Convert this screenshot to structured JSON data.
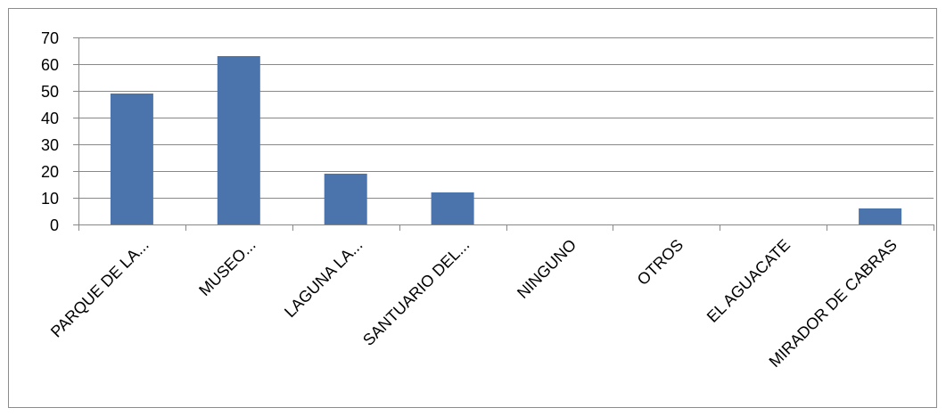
{
  "chart_data": {
    "type": "bar",
    "categories": [
      "PARQUE DE LA...",
      "MUSEO...",
      "LAGUNA LA...",
      "SANTUARIO DEL...",
      "NINGUNO",
      "OTROS",
      "EL AGUACATE",
      "MIRADOR DE CABRAS"
    ],
    "values": [
      49,
      63,
      19,
      12,
      0,
      0,
      0,
      6
    ],
    "ylim": [
      0,
      70
    ],
    "yticks": [
      0,
      10,
      20,
      30,
      40,
      50,
      60,
      70
    ],
    "grid": true,
    "legend": "none",
    "title": "",
    "xlabel": "",
    "ylabel": "",
    "colors": {
      "bar": "#4a74ab",
      "grid": "#888888",
      "axis": "#888888",
      "border": "#8c8c8c"
    }
  }
}
